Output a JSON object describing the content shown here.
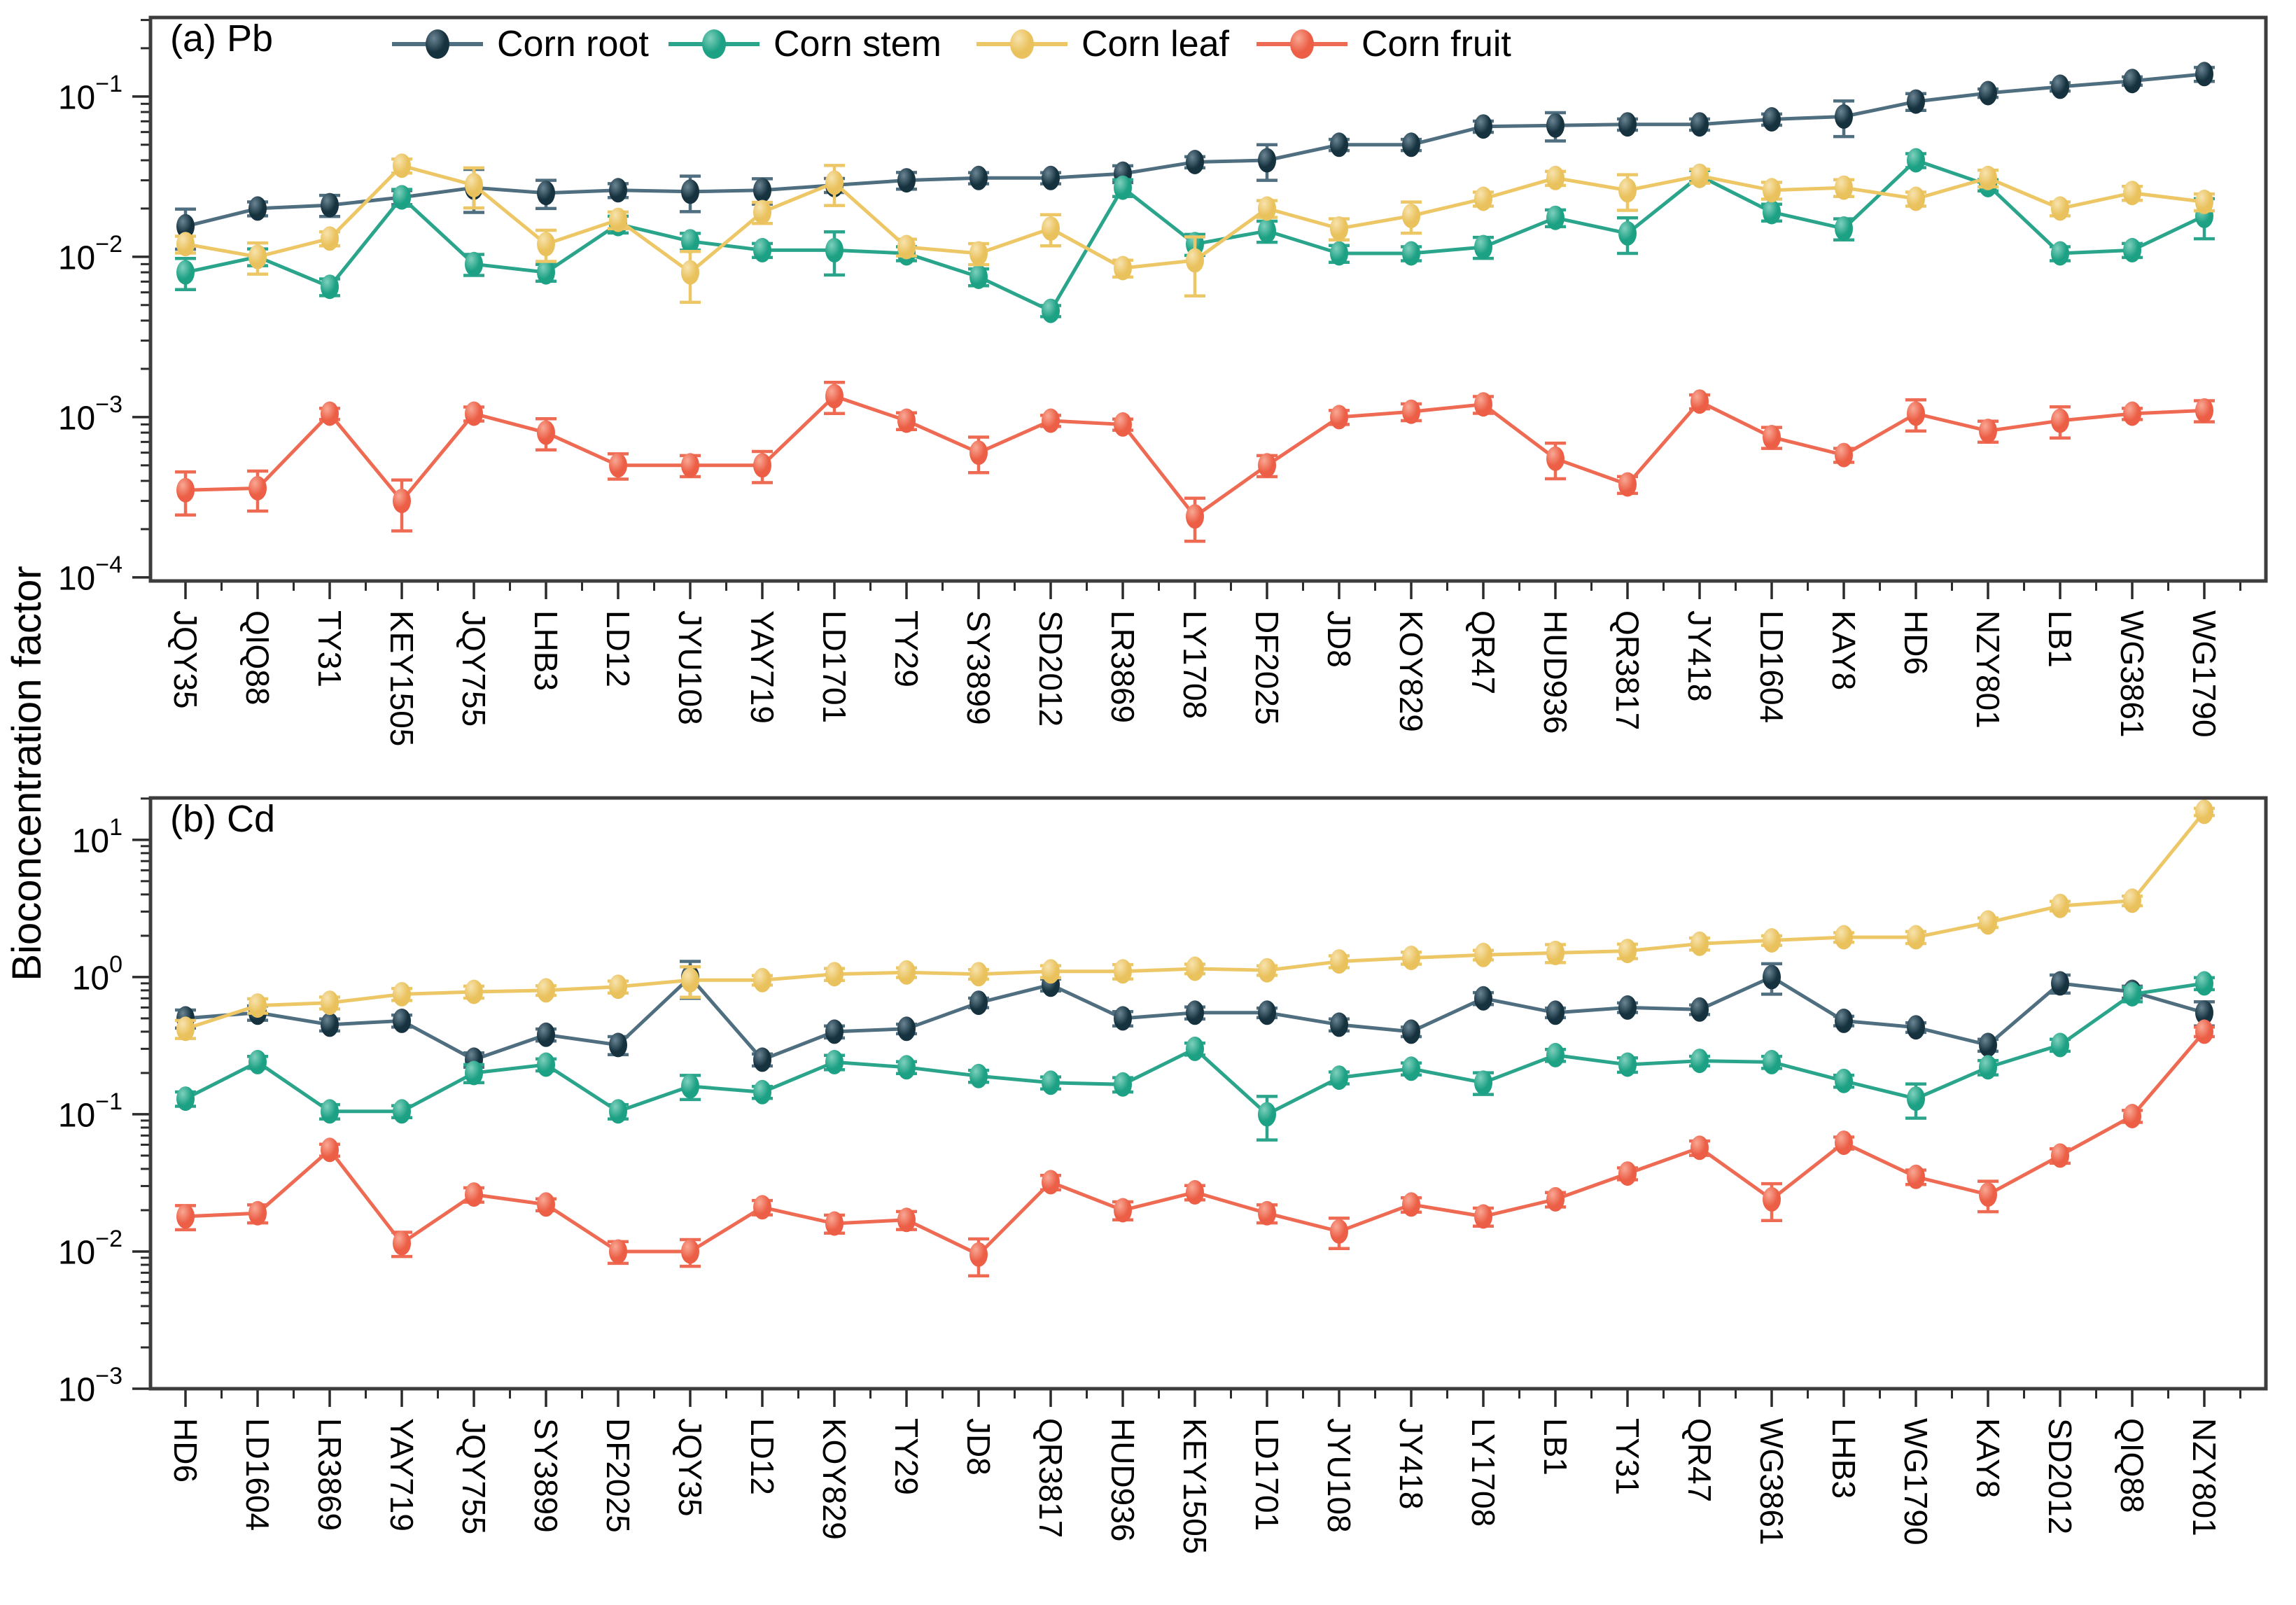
{
  "figure": {
    "ylabel": "Bioconcentration factor",
    "background": "#ffffff",
    "frame_color": "#3d3d3d"
  },
  "chart_data": [
    {
      "type": "line",
      "panel_label": "(a) Pb",
      "log_y": true,
      "ylim": [
        9.5e-05,
        0.311
      ],
      "grid": false,
      "legend_position": "top-inside",
      "xlabel": "",
      "ylabel": "Bioconcentration factor",
      "categories": [
        "JQY35",
        "QIQ88",
        "TY31",
        "KEY1505",
        "JQY755",
        "LHB3",
        "LD12",
        "JYU108",
        "YAY719",
        "LD1701",
        "TY29",
        "SY3899",
        "SD2012",
        "LR3869",
        "LY1708",
        "DF2025",
        "JD8",
        "KOY829",
        "QR47",
        "HUD936",
        "QR3817",
        "JY418",
        "LD1604",
        "KAY8",
        "HD6",
        "NZY801",
        "LB1",
        "WG3861",
        "WG1790"
      ],
      "series": [
        {
          "name": "Corn root",
          "line_color": "#4f6e7f",
          "marker_color": "#16323f",
          "marker_light": "#6b8594",
          "values": [
            0.0155,
            0.02,
            0.021,
            0.0235,
            0.027,
            0.025,
            0.026,
            0.0255,
            0.026,
            0.028,
            0.03,
            0.031,
            0.031,
            0.033,
            0.039,
            0.04,
            0.05,
            0.05,
            0.065,
            0.066,
            0.067,
            0.067,
            0.072,
            0.075,
            0.093,
            0.105,
            0.115,
            0.125,
            0.138
          ],
          "err_frac": [
            0.28,
            0.1,
            0.15,
            0.1,
            0.3,
            0.2,
            0.1,
            0.25,
            0.18,
            0.1,
            0.12,
            0.08,
            0.08,
            0.12,
            0.08,
            0.25,
            0.08,
            0.08,
            0.08,
            0.2,
            0.08,
            0.08,
            0.08,
            0.25,
            0.12,
            0.06,
            0.06,
            0.06,
            0.1
          ]
        },
        {
          "name": "Corn stem",
          "line_color": "#2aa58c",
          "marker_color": "#1da184",
          "marker_light": "#7fd0bd",
          "values": [
            0.008,
            0.01,
            0.0065,
            0.0235,
            0.009,
            0.008,
            0.016,
            0.0125,
            0.011,
            0.011,
            0.0105,
            0.0075,
            0.0046,
            0.027,
            0.012,
            0.0145,
            0.0105,
            0.0105,
            0.0115,
            0.0175,
            0.014,
            0.032,
            0.019,
            0.015,
            0.04,
            0.028,
            0.0105,
            0.011,
            0.018
          ],
          "err_frac": [
            0.22,
            0.12,
            0.12,
            0.12,
            0.15,
            0.12,
            0.12,
            0.12,
            0.1,
            0.3,
            0.1,
            0.12,
            0.08,
            0.12,
            0.15,
            0.15,
            0.12,
            0.1,
            0.15,
            0.12,
            0.25,
            0.08,
            0.12,
            0.15,
            0.1,
            0.08,
            0.1,
            0.1,
            0.28
          ]
        },
        {
          "name": "Corn leaf",
          "line_color": "#edc666",
          "marker_color": "#eac25d",
          "marker_light": "#f7e3ae",
          "values": [
            0.012,
            0.01,
            0.013,
            0.037,
            0.028,
            0.012,
            0.017,
            0.008,
            0.019,
            0.029,
            0.0115,
            0.0105,
            0.015,
            0.0085,
            0.0095,
            0.02,
            0.015,
            0.018,
            0.023,
            0.031,
            0.026,
            0.032,
            0.026,
            0.027,
            0.023,
            0.031,
            0.02,
            0.025,
            0.022
          ],
          "err_frac": [
            0.12,
            0.22,
            0.1,
            0.1,
            0.28,
            0.22,
            0.12,
            0.35,
            0.15,
            0.28,
            0.12,
            0.15,
            0.22,
            0.12,
            0.4,
            0.12,
            0.15,
            0.22,
            0.1,
            0.1,
            0.25,
            0.1,
            0.12,
            0.12,
            0.1,
            0.12,
            0.1,
            0.1,
            0.12
          ]
        },
        {
          "name": "Corn fruit",
          "line_color": "#ee6a52",
          "marker_color": "#ec5f46",
          "marker_light": "#f8a895",
          "values": [
            0.00035,
            0.00036,
            0.00105,
            0.0003,
            0.00105,
            0.0008,
            0.0005,
            0.0005,
            0.0005,
            0.00135,
            0.00095,
            0.0006,
            0.00095,
            0.0009,
            0.00024,
            0.0005,
            0.001,
            0.00108,
            0.0012,
            0.00055,
            0.00038,
            0.00125,
            0.00075,
            0.00058,
            0.00105,
            0.00082,
            0.00095,
            0.00105,
            0.0011
          ],
          "err_frac": [
            0.3,
            0.28,
            0.08,
            0.35,
            0.1,
            0.22,
            0.18,
            0.15,
            0.22,
            0.22,
            0.12,
            0.25,
            0.08,
            0.08,
            0.3,
            0.15,
            0.1,
            0.12,
            0.12,
            0.25,
            0.12,
            0.1,
            0.15,
            0.1,
            0.22,
            0.15,
            0.22,
            0.08,
            0.15
          ]
        }
      ]
    },
    {
      "type": "line",
      "panel_label": "(b) Cd",
      "log_y": true,
      "ylim": [
        0.001,
        20.2
      ],
      "grid": false,
      "legend_position": "none",
      "xlabel": "",
      "ylabel": "Bioconcentration factor",
      "categories": [
        "HD6",
        "LD1604",
        "LR3869",
        "YAY719",
        "JQY755",
        "SY3899",
        "DF2025",
        "JQY35",
        "LD12",
        "KOY829",
        "TY29",
        "JD8",
        "QR3817",
        "HUD936",
        "KEY1505",
        "LD1701",
        "JYU108",
        "JY418",
        "LY1708",
        "LB1",
        "TY31",
        "QR47",
        "WG3861",
        "LHB3",
        "WG1790",
        "KAY8",
        "SD2012",
        "QIQ88",
        "NZY801"
      ],
      "series": [
        {
          "name": "Corn root",
          "line_color": "#4f6e7f",
          "marker_color": "#16323f",
          "marker_light": "#6b8594",
          "values": [
            0.5,
            0.55,
            0.45,
            0.48,
            0.25,
            0.38,
            0.32,
            1.0,
            0.25,
            0.4,
            0.42,
            0.65,
            0.88,
            0.5,
            0.55,
            0.55,
            0.45,
            0.4,
            0.7,
            0.55,
            0.6,
            0.58,
            1.0,
            0.48,
            0.43,
            0.32,
            0.9,
            0.78,
            0.55
          ],
          "err_frac": [
            0.15,
            0.12,
            0.1,
            0.1,
            0.12,
            0.1,
            0.15,
            0.3,
            0.1,
            0.1,
            0.08,
            0.08,
            0.1,
            0.12,
            0.1,
            0.08,
            0.1,
            0.08,
            0.1,
            0.08,
            0.08,
            0.08,
            0.25,
            0.08,
            0.08,
            0.1,
            0.15,
            0.1,
            0.2
          ]
        },
        {
          "name": "Corn stem",
          "line_color": "#2aa58c",
          "marker_color": "#1da184",
          "marker_light": "#7fd0bd",
          "values": [
            0.13,
            0.24,
            0.105,
            0.105,
            0.2,
            0.23,
            0.105,
            0.16,
            0.145,
            0.24,
            0.22,
            0.19,
            0.17,
            0.165,
            0.3,
            0.1,
            0.185,
            0.215,
            0.17,
            0.27,
            0.23,
            0.245,
            0.24,
            0.175,
            0.13,
            0.22,
            0.32,
            0.75,
            0.9
          ],
          "err_frac": [
            0.12,
            0.1,
            0.12,
            0.1,
            0.15,
            0.1,
            0.12,
            0.2,
            0.1,
            0.12,
            0.1,
            0.1,
            0.1,
            0.12,
            0.1,
            0.35,
            0.1,
            0.1,
            0.18,
            0.1,
            0.12,
            0.08,
            0.1,
            0.1,
            0.28,
            0.12,
            0.1,
            0.12,
            0.1
          ]
        },
        {
          "name": "Corn leaf",
          "line_color": "#edc666",
          "marker_color": "#eac25d",
          "marker_light": "#f7e3ae",
          "values": [
            0.42,
            0.62,
            0.65,
            0.75,
            0.78,
            0.8,
            0.85,
            0.95,
            0.95,
            1.05,
            1.08,
            1.05,
            1.1,
            1.1,
            1.15,
            1.12,
            1.3,
            1.38,
            1.45,
            1.5,
            1.55,
            1.75,
            1.85,
            1.95,
            1.95,
            2.5,
            3.3,
            3.6,
            16.0
          ],
          "err_frac": [
            0.15,
            0.12,
            0.1,
            0.1,
            0.1,
            0.08,
            0.1,
            0.25,
            0.08,
            0.1,
            0.08,
            0.08,
            0.1,
            0.12,
            0.08,
            0.08,
            0.1,
            0.1,
            0.08,
            0.15,
            0.12,
            0.1,
            0.08,
            0.08,
            0.1,
            0.08,
            0.08,
            0.08,
            0.06
          ]
        },
        {
          "name": "Corn fruit",
          "line_color": "#ee6a52",
          "marker_color": "#ec5f46",
          "marker_light": "#f8a895",
          "values": [
            0.018,
            0.019,
            0.055,
            0.0115,
            0.026,
            0.022,
            0.01,
            0.01,
            0.021,
            0.016,
            0.017,
            0.0095,
            0.032,
            0.02,
            0.027,
            0.019,
            0.014,
            0.022,
            0.018,
            0.024,
            0.037,
            0.057,
            0.024,
            0.062,
            0.035,
            0.026,
            0.05,
            0.097,
            0.4
          ],
          "err_frac": [
            0.2,
            0.15,
            0.1,
            0.2,
            0.12,
            0.1,
            0.18,
            0.22,
            0.12,
            0.15,
            0.15,
            0.3,
            0.12,
            0.15,
            0.12,
            0.15,
            0.25,
            0.12,
            0.15,
            0.12,
            0.1,
            0.12,
            0.3,
            0.1,
            0.12,
            0.25,
            0.12,
            0.1,
            0.08
          ]
        }
      ]
    }
  ]
}
